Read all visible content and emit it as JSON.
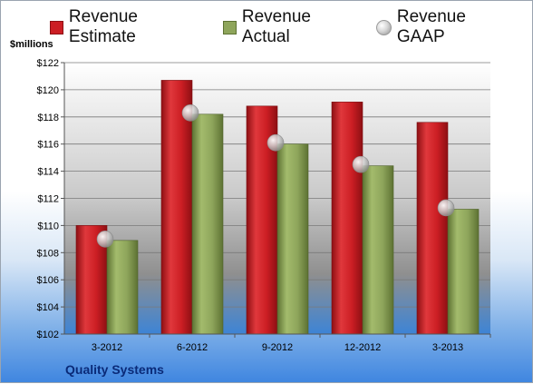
{
  "chart_data": {
    "type": "bar",
    "categories": [
      "3-2012",
      "6-2012",
      "9-2012",
      "12-2012",
      "3-2013"
    ],
    "series": [
      {
        "name": "Revenue Estimate",
        "kind": "bar",
        "color": "#cc1e24",
        "values": [
          110.0,
          120.7,
          118.8,
          119.1,
          117.6
        ]
      },
      {
        "name": "Revenue Actual",
        "kind": "bar",
        "color": "#8ea55b",
        "values": [
          108.9,
          118.2,
          116.0,
          114.4,
          111.2
        ]
      },
      {
        "name": "Revenue GAAP",
        "kind": "marker",
        "color": "#c8c8c8",
        "values": [
          109.0,
          118.3,
          116.1,
          114.5,
          111.3
        ]
      }
    ],
    "ylabel": "$millions",
    "ylim": [
      102,
      122
    ],
    "yticks": [
      102,
      104,
      106,
      108,
      110,
      112,
      114,
      116,
      118,
      120,
      122
    ],
    "ytick_prefix": "$",
    "grid": true,
    "legend_position": "top",
    "footer": "Quality Systems"
  }
}
